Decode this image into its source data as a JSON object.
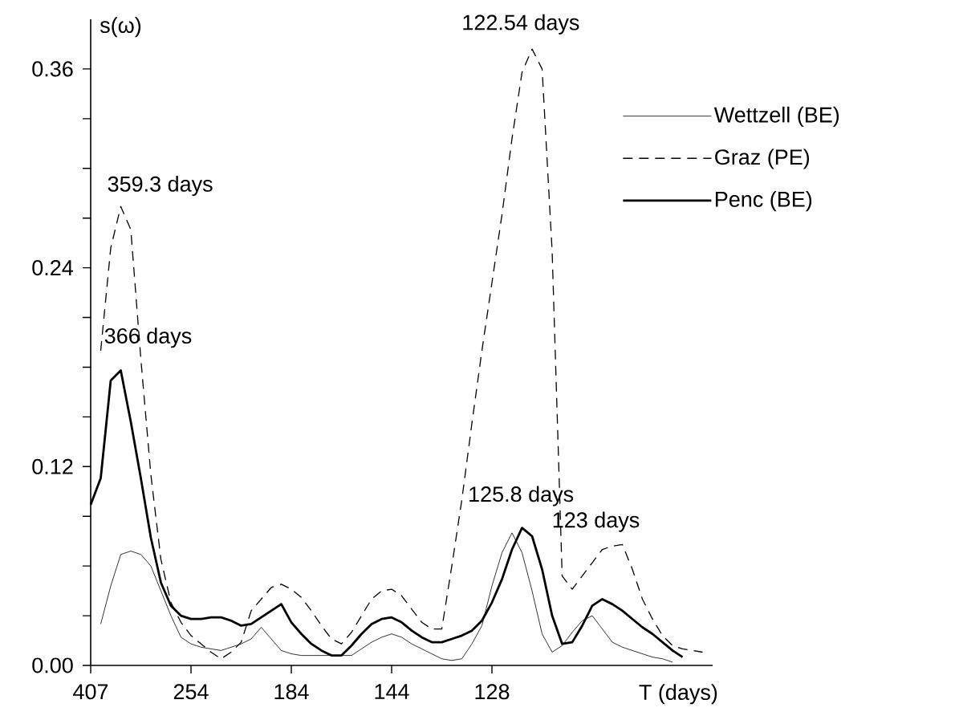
{
  "chart_data": {
    "type": "line",
    "xlabel": "T (days)",
    "ylabel": "s(ω)",
    "categories": [
      "407",
      null,
      null,
      null,
      null,
      null,
      null,
      null,
      null,
      null,
      "254",
      null,
      null,
      null,
      null,
      null,
      null,
      null,
      null,
      null,
      "184",
      null,
      null,
      null,
      null,
      null,
      null,
      null,
      null,
      null,
      "144",
      null,
      null,
      null,
      null,
      null,
      null,
      null,
      null,
      null,
      "128",
      null,
      null,
      null,
      null,
      null,
      null,
      null,
      null,
      null,
      null,
      null,
      null,
      null,
      null,
      null,
      null,
      null,
      null,
      null,
      null,
      null
    ],
    "ylim": [
      0,
      0.39
    ],
    "yticks": [
      {
        "value": 0,
        "label": "0.00"
      },
      {
        "value": 0.03,
        "label": null
      },
      {
        "value": 0.06,
        "label": null
      },
      {
        "value": 0.09,
        "label": null
      },
      {
        "value": 0.12,
        "label": "0.12"
      },
      {
        "value": 0.15,
        "label": null
      },
      {
        "value": 0.18,
        "label": null
      },
      {
        "value": 0.21,
        "label": null
      },
      {
        "value": 0.24,
        "label": "0.24"
      },
      {
        "value": 0.27,
        "label": null
      },
      {
        "value": 0.3,
        "label": null
      },
      {
        "value": 0.33,
        "label": null
      },
      {
        "value": 0.36,
        "label": "0.36"
      }
    ],
    "legend": "top right",
    "marker": "none",
    "series": [
      {
        "name": "Wettzell (BE)",
        "color": "#000000",
        "line_style": "solid",
        "values": [
          null,
          0.025,
          0.048,
          0.067,
          0.069,
          0.067,
          0.06,
          0.045,
          0.03,
          0.017,
          0.013,
          0.011,
          0.01,
          0.009,
          0.011,
          0.013,
          0.016,
          0.023,
          0.016,
          0.009,
          0.007,
          0.006,
          0.006,
          0.006,
          0.006,
          0.006,
          0.006,
          0.01,
          0.014,
          0.017,
          0.019,
          0.017,
          0.013,
          0.01,
          0.007,
          0.004,
          0.003,
          0.004,
          0.013,
          0.024,
          0.048,
          0.068,
          0.08,
          0.068,
          0.045,
          0.019,
          0.008,
          0.012,
          0.02,
          0.027,
          0.03,
          0.022,
          0.014,
          0.011,
          0.009,
          0.007,
          0.005,
          0.004,
          0.002,
          null,
          null,
          null
        ]
      },
      {
        "name": "Graz (PE)",
        "color": "#000000",
        "line_style": "dashed",
        "values": [
          null,
          0.19,
          0.252,
          0.277,
          0.263,
          0.185,
          0.115,
          0.064,
          0.038,
          0.026,
          0.018,
          0.013,
          0.008,
          0.004,
          0.008,
          0.014,
          0.033,
          0.04,
          0.047,
          0.049,
          0.046,
          0.041,
          0.033,
          0.024,
          0.016,
          0.013,
          0.02,
          0.03,
          0.04,
          0.045,
          0.046,
          0.042,
          0.034,
          0.026,
          0.022,
          0.022,
          0.06,
          0.1,
          0.146,
          0.19,
          0.231,
          0.272,
          0.318,
          0.358,
          0.372,
          0.36,
          0.25,
          0.054,
          0.046,
          0.054,
          0.062,
          0.07,
          0.072,
          0.073,
          0.058,
          0.04,
          0.028,
          0.018,
          0.012,
          0.01,
          0.009,
          0.008
        ]
      },
      {
        "name": "Penc (BE)",
        "color": "#000000",
        "line_style": "solid",
        "values": [
          0.097,
          0.113,
          0.172,
          0.178,
          0.147,
          0.113,
          0.077,
          0.05,
          0.036,
          0.03,
          0.028,
          0.028,
          0.029,
          0.029,
          0.027,
          0.024,
          0.025,
          0.029,
          0.033,
          0.037,
          0.026,
          0.019,
          0.013,
          0.009,
          0.006,
          0.006,
          0.012,
          0.019,
          0.025,
          0.028,
          0.029,
          0.026,
          0.021,
          0.017,
          0.014,
          0.014,
          0.016,
          0.018,
          0.021,
          0.027,
          0.038,
          0.052,
          0.07,
          0.083,
          0.078,
          0.058,
          0.03,
          0.013,
          0.014,
          0.024,
          0.036,
          0.04,
          0.037,
          0.033,
          0.028,
          0.023,
          0.019,
          0.014,
          0.009,
          0.005,
          null,
          null
        ]
      }
    ],
    "annotations": [
      "359.3 days",
      "366 days",
      "122.54 days",
      "125.8 days",
      "123 days"
    ]
  }
}
